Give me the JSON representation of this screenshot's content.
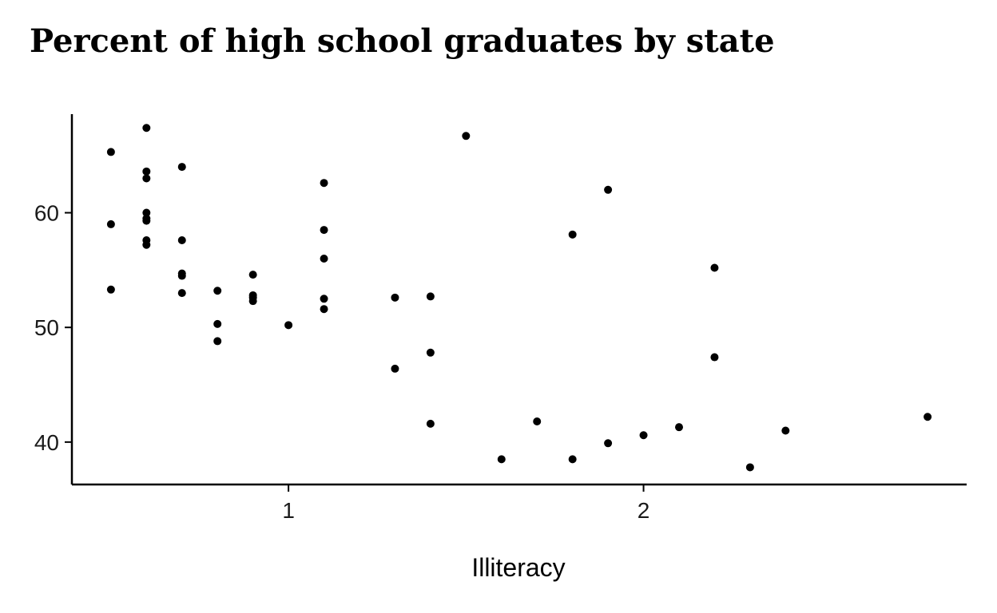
{
  "chart_data": {
    "type": "scatter",
    "title": "Percent of high school graduates by state",
    "xlabel": "Illiteracy",
    "ylabel": "",
    "xlim": [
      0.39,
      2.91
    ],
    "ylim": [
      36.3,
      68.6
    ],
    "x_ticks": [
      1,
      2
    ],
    "x_tick_labels": [
      "1",
      "2"
    ],
    "y_ticks": [
      40,
      50,
      60
    ],
    "y_tick_labels": [
      "40",
      "50",
      "60"
    ],
    "grid": false,
    "legend": "none",
    "point_color": "#000000",
    "points": [
      {
        "x": 0.5,
        "y": 65.3
      },
      {
        "x": 0.5,
        "y": 59.0
      },
      {
        "x": 0.5,
        "y": 53.3
      },
      {
        "x": 0.6,
        "y": 67.4
      },
      {
        "x": 0.6,
        "y": 63.6
      },
      {
        "x": 0.6,
        "y": 63.0
      },
      {
        "x": 0.6,
        "y": 60.0
      },
      {
        "x": 0.6,
        "y": 59.5
      },
      {
        "x": 0.6,
        "y": 59.3
      },
      {
        "x": 0.6,
        "y": 57.6
      },
      {
        "x": 0.6,
        "y": 57.2
      },
      {
        "x": 0.7,
        "y": 64.0
      },
      {
        "x": 0.7,
        "y": 57.6
      },
      {
        "x": 0.7,
        "y": 54.7
      },
      {
        "x": 0.7,
        "y": 54.5
      },
      {
        "x": 0.7,
        "y": 53.0
      },
      {
        "x": 0.8,
        "y": 53.2
      },
      {
        "x": 0.8,
        "y": 50.3
      },
      {
        "x": 0.8,
        "y": 48.8
      },
      {
        "x": 0.9,
        "y": 54.6
      },
      {
        "x": 0.9,
        "y": 52.8
      },
      {
        "x": 0.9,
        "y": 52.6
      },
      {
        "x": 0.9,
        "y": 52.3
      },
      {
        "x": 1.0,
        "y": 50.2
      },
      {
        "x": 1.1,
        "y": 62.6
      },
      {
        "x": 1.1,
        "y": 58.5
      },
      {
        "x": 1.1,
        "y": 56.0
      },
      {
        "x": 1.1,
        "y": 52.5
      },
      {
        "x": 1.1,
        "y": 51.6
      },
      {
        "x": 1.3,
        "y": 52.6
      },
      {
        "x": 1.3,
        "y": 46.4
      },
      {
        "x": 1.4,
        "y": 52.7
      },
      {
        "x": 1.4,
        "y": 47.8
      },
      {
        "x": 1.4,
        "y": 41.6
      },
      {
        "x": 1.5,
        "y": 66.7
      },
      {
        "x": 1.6,
        "y": 38.5
      },
      {
        "x": 1.7,
        "y": 41.8
      },
      {
        "x": 1.8,
        "y": 58.1
      },
      {
        "x": 1.8,
        "y": 38.5
      },
      {
        "x": 1.9,
        "y": 62.0
      },
      {
        "x": 1.9,
        "y": 39.9
      },
      {
        "x": 2.0,
        "y": 40.6
      },
      {
        "x": 2.1,
        "y": 41.3
      },
      {
        "x": 2.2,
        "y": 55.2
      },
      {
        "x": 2.2,
        "y": 47.4
      },
      {
        "x": 2.3,
        "y": 37.8
      },
      {
        "x": 2.4,
        "y": 41.0
      },
      {
        "x": 2.8,
        "y": 42.2
      }
    ]
  }
}
